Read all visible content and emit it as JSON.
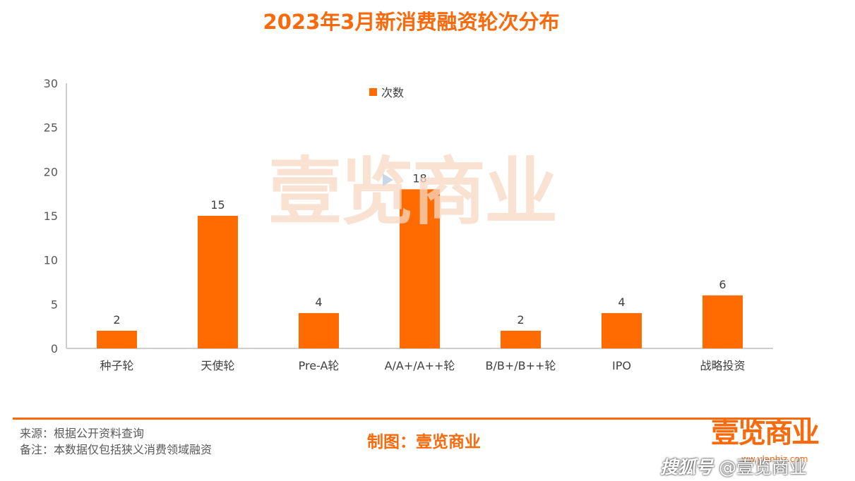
{
  "title": "2023年3月新消费融资轮次分布",
  "chart_data": {
    "type": "bar",
    "categories": [
      "种子轮",
      "天使轮",
      "Pre-A轮",
      "A/A+/A++轮",
      "B/B+/B++轮",
      "IPO",
      "战略投资"
    ],
    "series": [
      {
        "name": "次数",
        "values": [
          2,
          15,
          4,
          18,
          2,
          4,
          6
        ],
        "color": "#FF6B00"
      }
    ],
    "ylim": [
      0,
      30
    ],
    "yticks": [
      0,
      5,
      10,
      15,
      20,
      25,
      30
    ],
    "legend": "top-center",
    "grid": false
  },
  "watermark": "壹览商业",
  "footer": {
    "source": "来源：根据公开资料查询",
    "note": "备注：本数据仅包括狭义消费领域融资",
    "credit": "制图：壹览商业",
    "logo": "壹览商业",
    "logo_url": "ww.ylanbiz.com",
    "badge_prefix": "搜狐号",
    "badge_handle": "@壹览商业"
  }
}
